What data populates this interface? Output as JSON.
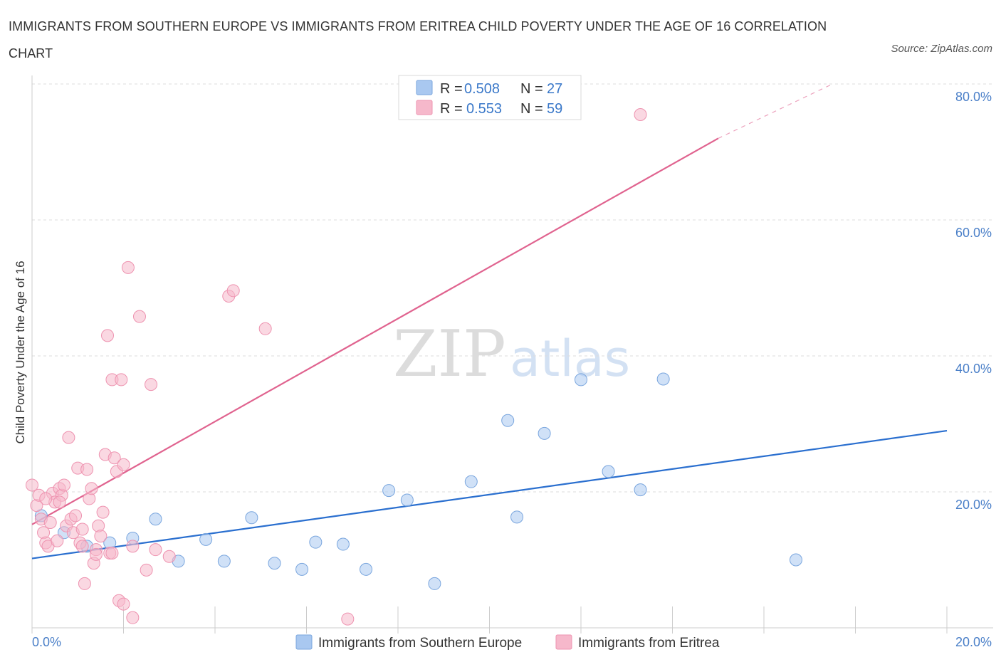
{
  "title": "IMMIGRANTS FROM SOUTHERN EUROPE VS IMMIGRANTS FROM ERITREA CHILD POVERTY UNDER THE AGE OF 16 CORRELATION CHART",
  "source": "Source: ZipAtlas.com",
  "watermark": {
    "zip": "ZIP",
    "atlas": "atlas"
  },
  "colors": {
    "blue_fill": "#a9c8f0",
    "blue_stroke": "#7aa6de",
    "blue_line": "#2a6fcf",
    "pink_fill": "#f6b8cb",
    "pink_stroke": "#ee93b0",
    "pink_line": "#e0638f",
    "tick_text": "#4a7fc8",
    "grid": "#dddddd"
  },
  "stats": {
    "r_label": "R =",
    "n_label": "N =",
    "blue": {
      "r": "0.508",
      "n": "27"
    },
    "pink": {
      "r": "0.553",
      "n": "59"
    }
  },
  "chart_data": {
    "type": "scatter",
    "ylabel": "Child Poverty Under the Age of 16",
    "xlim": [
      0,
      20
    ],
    "ylim": [
      0,
      80
    ],
    "x_tick_labels": {
      "left": "0.0%",
      "right": "20.0%"
    },
    "y_ticks": [
      {
        "value": 20,
        "label": "20.0%"
      },
      {
        "value": 40,
        "label": "40.0%"
      },
      {
        "value": 60,
        "label": "60.0%"
      },
      {
        "value": 80,
        "label": "80.0%"
      }
    ],
    "series": [
      {
        "name": "Immigrants from Southern Europe",
        "color": "blue",
        "points": [
          [
            0.2,
            16.5
          ],
          [
            0.7,
            14.0
          ],
          [
            1.2,
            12.0
          ],
          [
            1.7,
            12.5
          ],
          [
            2.2,
            13.2
          ],
          [
            2.7,
            16.0
          ],
          [
            3.2,
            9.8
          ],
          [
            3.8,
            13.0
          ],
          [
            4.2,
            9.8
          ],
          [
            4.8,
            16.2
          ],
          [
            5.3,
            9.5
          ],
          [
            5.9,
            8.6
          ],
          [
            6.2,
            12.6
          ],
          [
            6.8,
            12.3
          ],
          [
            7.3,
            8.6
          ],
          [
            7.8,
            20.2
          ],
          [
            8.2,
            18.8
          ],
          [
            8.8,
            6.5
          ],
          [
            9.6,
            21.5
          ],
          [
            10.4,
            30.5
          ],
          [
            10.6,
            16.3
          ],
          [
            11.2,
            28.6
          ],
          [
            12.0,
            36.5
          ],
          [
            12.6,
            23.0
          ],
          [
            13.3,
            20.3
          ],
          [
            13.8,
            36.6
          ],
          [
            16.7,
            10.0
          ]
        ],
        "fit": {
          "x0": 0,
          "y0": 10.2,
          "x1": 20,
          "y1": 29.0
        }
      },
      {
        "name": "Immigrants from Eritrea",
        "color": "pink",
        "points": [
          [
            0.0,
            21.0
          ],
          [
            0.1,
            18.0
          ],
          [
            0.15,
            19.5
          ],
          [
            0.2,
            16.0
          ],
          [
            0.25,
            14.0
          ],
          [
            0.3,
            12.5
          ],
          [
            0.35,
            12.0
          ],
          [
            0.4,
            15.5
          ],
          [
            0.45,
            19.8
          ],
          [
            0.5,
            18.5
          ],
          [
            0.55,
            12.8
          ],
          [
            0.6,
            20.5
          ],
          [
            0.65,
            19.5
          ],
          [
            0.7,
            21.0
          ],
          [
            0.75,
            15.0
          ],
          [
            0.8,
            28.0
          ],
          [
            0.85,
            16.0
          ],
          [
            0.9,
            14.0
          ],
          [
            0.95,
            16.5
          ],
          [
            1.0,
            23.5
          ],
          [
            1.05,
            12.5
          ],
          [
            1.1,
            14.5
          ],
          [
            1.15,
            6.5
          ],
          [
            1.2,
            23.3
          ],
          [
            1.25,
            19.0
          ],
          [
            1.3,
            20.5
          ],
          [
            1.35,
            9.5
          ],
          [
            1.4,
            11.5
          ],
          [
            1.45,
            15.0
          ],
          [
            1.5,
            13.5
          ],
          [
            1.55,
            17.0
          ],
          [
            1.6,
            25.5
          ],
          [
            1.65,
            43.0
          ],
          [
            1.7,
            11.0
          ],
          [
            1.75,
            36.5
          ],
          [
            1.8,
            25.0
          ],
          [
            1.85,
            23.0
          ],
          [
            1.9,
            4.0
          ],
          [
            1.95,
            36.5
          ],
          [
            2.0,
            24.0
          ],
          [
            2.1,
            53.0
          ],
          [
            2.2,
            1.5
          ],
          [
            2.35,
            45.8
          ],
          [
            2.5,
            8.5
          ],
          [
            2.6,
            35.8
          ],
          [
            2.7,
            11.5
          ],
          [
            3.0,
            10.5
          ],
          [
            4.3,
            48.8
          ],
          [
            4.4,
            49.6
          ],
          [
            5.1,
            44.0
          ],
          [
            1.75,
            11.0
          ],
          [
            2.2,
            12.0
          ],
          [
            0.3,
            19.0
          ],
          [
            0.6,
            18.5
          ],
          [
            1.1,
            12.0
          ],
          [
            1.4,
            10.8
          ],
          [
            2.0,
            3.5
          ],
          [
            6.9,
            1.3
          ],
          [
            13.3,
            75.5
          ]
        ],
        "fit": {
          "x0": 0,
          "y0": 15.2,
          "x1": 15.0,
          "y1": 72.0,
          "dash_x1": 17.5,
          "dash_y1": 80.0
        }
      }
    ]
  }
}
